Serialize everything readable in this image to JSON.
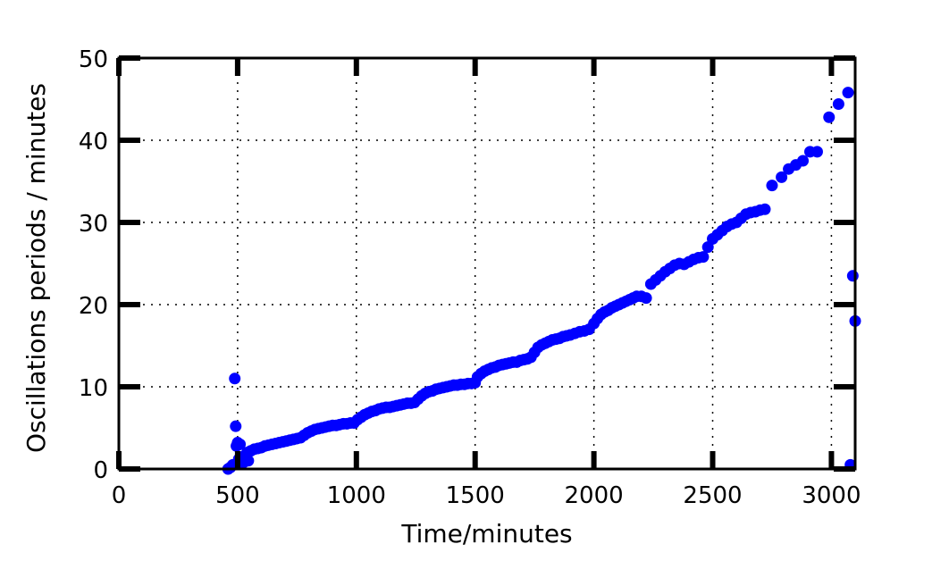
{
  "chart_data": {
    "type": "scatter",
    "title": "",
    "xlabel": "Time/minutes",
    "ylabel": "Oscillations periods / minutes",
    "xlim": [
      0,
      3100
    ],
    "ylim": [
      0,
      50
    ],
    "xticks": [
      0,
      500,
      1000,
      1500,
      2000,
      2500,
      3000
    ],
    "yticks": [
      0,
      10,
      20,
      30,
      40,
      50
    ],
    "xtick_labels": [
      "0",
      "500",
      "1000",
      "1500",
      "2000",
      "2500",
      "3000"
    ],
    "ytick_labels": [
      "0",
      "10",
      "20",
      "30",
      "40",
      "50"
    ],
    "grid": true,
    "grid_style": "dotted",
    "marker_color": "#0000ff",
    "series": [
      {
        "points": [
          [
            460,
            0.0
          ],
          [
            470,
            0.2
          ],
          [
            480,
            0.5
          ],
          [
            488,
            11.0
          ],
          [
            492,
            5.2
          ],
          [
            495,
            2.8
          ],
          [
            500,
            3.2
          ],
          [
            505,
            1.2
          ],
          [
            510,
            3.0
          ],
          [
            515,
            0.6
          ],
          [
            520,
            1.5
          ],
          [
            525,
            0.8
          ],
          [
            530,
            1.2
          ],
          [
            535,
            1.6
          ],
          [
            540,
            2.0
          ],
          [
            545,
            1.0
          ],
          [
            555,
            2.2
          ],
          [
            570,
            2.4
          ],
          [
            585,
            2.5
          ],
          [
            600,
            2.6
          ],
          [
            615,
            2.8
          ],
          [
            630,
            2.9
          ],
          [
            645,
            3.0
          ],
          [
            660,
            3.1
          ],
          [
            675,
            3.2
          ],
          [
            690,
            3.3
          ],
          [
            705,
            3.4
          ],
          [
            720,
            3.5
          ],
          [
            735,
            3.6
          ],
          [
            750,
            3.7
          ],
          [
            765,
            3.8
          ],
          [
            780,
            4.1
          ],
          [
            795,
            4.4
          ],
          [
            810,
            4.6
          ],
          [
            825,
            4.8
          ],
          [
            840,
            4.9
          ],
          [
            855,
            5.0
          ],
          [
            870,
            5.1
          ],
          [
            885,
            5.2
          ],
          [
            900,
            5.3
          ],
          [
            915,
            5.3
          ],
          [
            930,
            5.4
          ],
          [
            945,
            5.5
          ],
          [
            960,
            5.5
          ],
          [
            975,
            5.6
          ],
          [
            990,
            5.6
          ],
          [
            1005,
            6.0
          ],
          [
            1020,
            6.3
          ],
          [
            1035,
            6.6
          ],
          [
            1050,
            6.8
          ],
          [
            1065,
            7.0
          ],
          [
            1080,
            7.1
          ],
          [
            1095,
            7.3
          ],
          [
            1110,
            7.4
          ],
          [
            1125,
            7.5
          ],
          [
            1140,
            7.5
          ],
          [
            1155,
            7.6
          ],
          [
            1170,
            7.7
          ],
          [
            1185,
            7.8
          ],
          [
            1200,
            7.9
          ],
          [
            1215,
            8.0
          ],
          [
            1230,
            8.0
          ],
          [
            1245,
            8.1
          ],
          [
            1260,
            8.5
          ],
          [
            1275,
            8.9
          ],
          [
            1290,
            9.2
          ],
          [
            1305,
            9.4
          ],
          [
            1320,
            9.5
          ],
          [
            1335,
            9.7
          ],
          [
            1350,
            9.8
          ],
          [
            1365,
            9.9
          ],
          [
            1380,
            10.0
          ],
          [
            1395,
            10.1
          ],
          [
            1410,
            10.2
          ],
          [
            1425,
            10.2
          ],
          [
            1440,
            10.3
          ],
          [
            1455,
            10.3
          ],
          [
            1470,
            10.4
          ],
          [
            1485,
            10.4
          ],
          [
            1500,
            10.5
          ],
          [
            1510,
            11.2
          ],
          [
            1525,
            11.6
          ],
          [
            1540,
            11.9
          ],
          [
            1555,
            12.1
          ],
          [
            1570,
            12.3
          ],
          [
            1585,
            12.4
          ],
          [
            1600,
            12.6
          ],
          [
            1615,
            12.7
          ],
          [
            1630,
            12.8
          ],
          [
            1645,
            12.9
          ],
          [
            1660,
            13.0
          ],
          [
            1675,
            13.0
          ],
          [
            1690,
            13.2
          ],
          [
            1705,
            13.3
          ],
          [
            1720,
            13.4
          ],
          [
            1735,
            13.6
          ],
          [
            1750,
            14.2
          ],
          [
            1765,
            14.8
          ],
          [
            1780,
            15.1
          ],
          [
            1795,
            15.3
          ],
          [
            1810,
            15.5
          ],
          [
            1825,
            15.7
          ],
          [
            1840,
            15.8
          ],
          [
            1855,
            15.9
          ],
          [
            1870,
            16.1
          ],
          [
            1885,
            16.2
          ],
          [
            1900,
            16.3
          ],
          [
            1920,
            16.5
          ],
          [
            1940,
            16.7
          ],
          [
            1960,
            16.8
          ],
          [
            1980,
            17.0
          ],
          [
            2000,
            17.7
          ],
          [
            2015,
            18.3
          ],
          [
            2030,
            18.8
          ],
          [
            2045,
            19.1
          ],
          [
            2060,
            19.3
          ],
          [
            2075,
            19.6
          ],
          [
            2090,
            19.8
          ],
          [
            2105,
            20.0
          ],
          [
            2120,
            20.2
          ],
          [
            2135,
            20.4
          ],
          [
            2150,
            20.6
          ],
          [
            2165,
            20.8
          ],
          [
            2180,
            21.0
          ],
          [
            2200,
            21.0
          ],
          [
            2220,
            20.8
          ],
          [
            2240,
            22.5
          ],
          [
            2260,
            23.0
          ],
          [
            2280,
            23.5
          ],
          [
            2300,
            24.0
          ],
          [
            2320,
            24.4
          ],
          [
            2340,
            24.8
          ],
          [
            2360,
            25.0
          ],
          [
            2380,
            24.9
          ],
          [
            2400,
            25.2
          ],
          [
            2420,
            25.5
          ],
          [
            2440,
            25.7
          ],
          [
            2460,
            25.8
          ],
          [
            2480,
            27.0
          ],
          [
            2500,
            28.0
          ],
          [
            2520,
            28.5
          ],
          [
            2540,
            29.0
          ],
          [
            2560,
            29.5
          ],
          [
            2580,
            29.8
          ],
          [
            2600,
            30.0
          ],
          [
            2620,
            30.5
          ],
          [
            2640,
            31.0
          ],
          [
            2660,
            31.2
          ],
          [
            2680,
            31.3
          ],
          [
            2700,
            31.5
          ],
          [
            2720,
            31.6
          ],
          [
            2750,
            34.5
          ],
          [
            2790,
            35.5
          ],
          [
            2820,
            36.5
          ],
          [
            2850,
            37.0
          ],
          [
            2880,
            37.5
          ],
          [
            2910,
            38.6
          ],
          [
            2940,
            38.6
          ],
          [
            2990,
            42.8
          ],
          [
            3030,
            44.4
          ],
          [
            3070,
            45.8
          ],
          [
            3080,
            0.5
          ],
          [
            3090,
            23.5
          ],
          [
            3100,
            18.0
          ]
        ]
      }
    ]
  }
}
